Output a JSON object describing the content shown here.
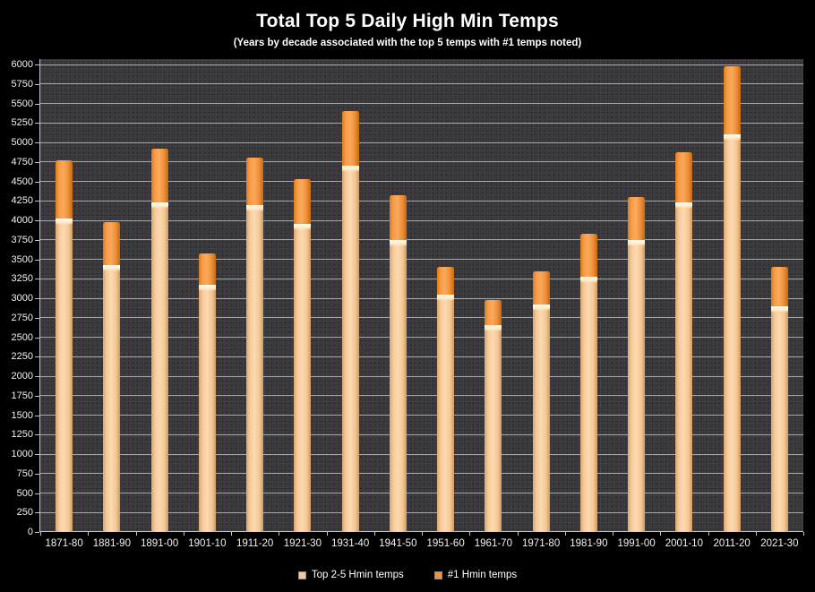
{
  "title": "Total Top 5 Daily High Min Temps",
  "subtitle": "(Years by decade associated with the top 5 temps with #1 temps noted)",
  "colors": {
    "background": "#000000",
    "plot_background": "#38373a",
    "gridline": "#bababc",
    "axis_text": "#f2f2f2",
    "title_text": "#ffffff",
    "top25_fill": "#f6ca9c",
    "no1_fill": "#f2913a"
  },
  "chart_data": {
    "type": "bar",
    "stacked": true,
    "title": "Total Top 5 Daily High Min Temps",
    "subtitle": "(Years by decade associated with the top 5 temps with #1 temps noted)",
    "xlabel": "",
    "ylabel": "",
    "ylim": [
      0,
      6000
    ],
    "ytick_step": 250,
    "grid": "horizontal",
    "legend_position": "bottom",
    "categories": [
      "1871-80",
      "1881-90",
      "1891-00",
      "1901-10",
      "1911-20",
      "1921-30",
      "1931-40",
      "1941-50",
      "1951-60",
      "1961-70",
      "1971-80",
      "1981-90",
      "1991-00",
      "2001-10",
      "2011-20",
      "2021-30"
    ],
    "series": [
      {
        "name": "Top 2-5 Hmin temps",
        "color": "#f6ca9c",
        "values": [
          4025,
          3425,
          4225,
          3175,
          4200,
          3950,
          4700,
          3750,
          3050,
          2650,
          2925,
          3275,
          3750,
          4225,
          5100,
          2900
        ]
      },
      {
        "name": "#1 Hmin temps",
        "color": "#f2913a",
        "values": [
          750,
          550,
          700,
          400,
          600,
          575,
          700,
          575,
          350,
          325,
          425,
          550,
          550,
          650,
          875,
          500
        ]
      }
    ],
    "stack_totals": [
      4775,
      3975,
      4925,
      3575,
      4800,
      4525,
      5400,
      4325,
      3400,
      2975,
      3350,
      3825,
      4300,
      4875,
      5975,
      3400
    ]
  },
  "legend": {
    "items": [
      {
        "label": "Top 2-5 Hmin temps",
        "color": "#f6ca9c"
      },
      {
        "label": "#1 Hmin temps",
        "color": "#f2913a"
      }
    ]
  }
}
